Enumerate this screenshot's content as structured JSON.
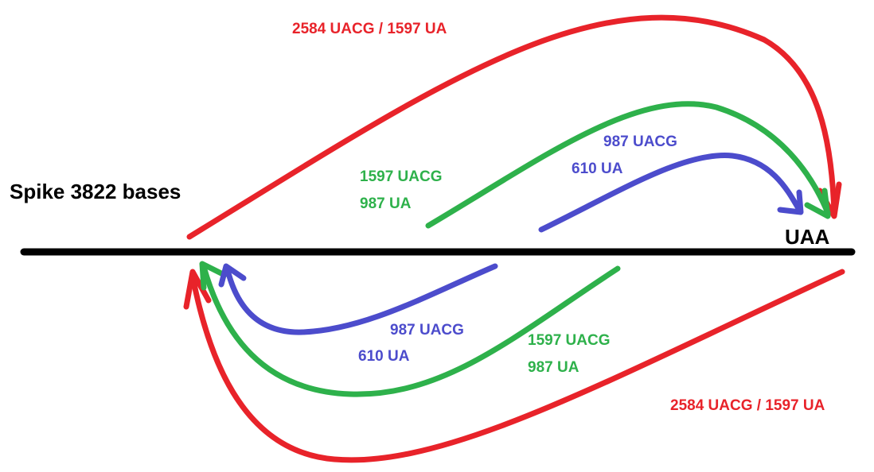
{
  "diagram": {
    "title": "Spike 3822 bases",
    "stop_codon": "UAA",
    "colors": {
      "red": "#e8232a",
      "green": "#2eb14b",
      "blue": "#4c4ccc",
      "line": "#000000"
    },
    "top_labels": {
      "red": "2584 UACG / 1597 UA",
      "green_line1": "1597 UACG",
      "green_line2": "987 UA",
      "blue_line1": "987 UACG",
      "blue_line2": "610 UA"
    },
    "bottom_labels": {
      "red": "2584 UACG / 1597 UA",
      "green_line1": "1597 UACG",
      "green_line2": "987 UA",
      "blue_line1": "987 UACG",
      "blue_line2": "610 UA"
    }
  }
}
